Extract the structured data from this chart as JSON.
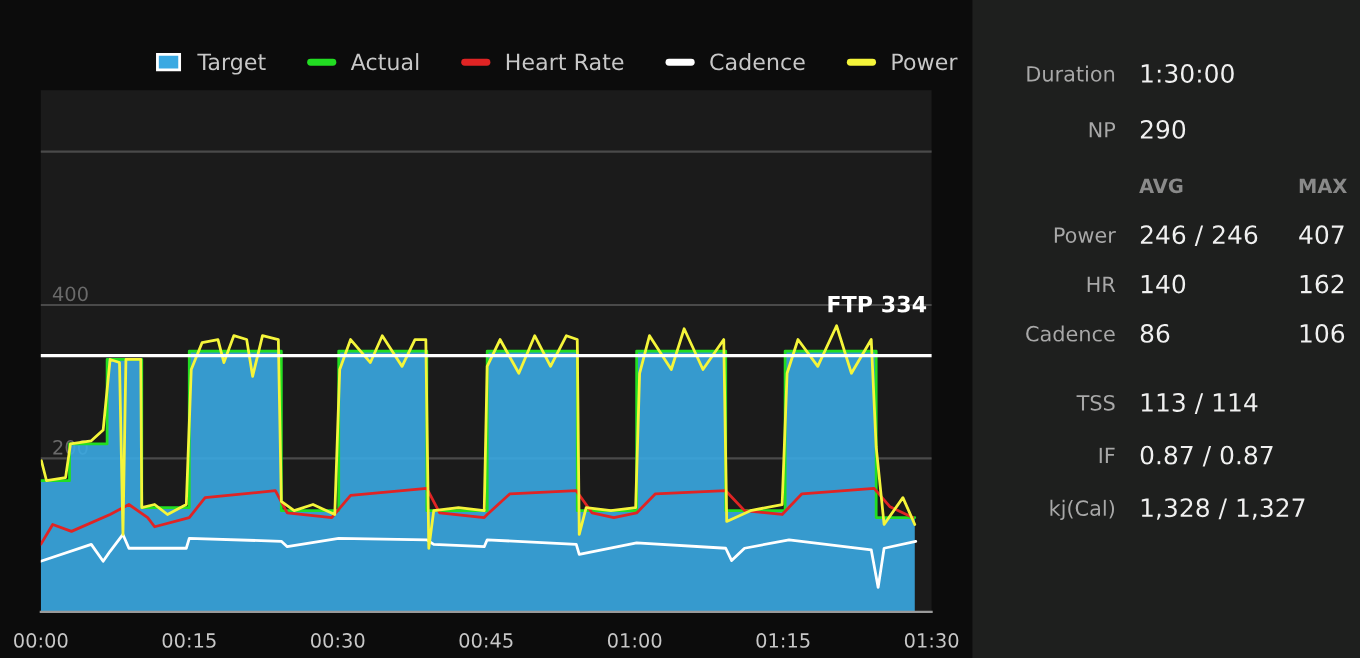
{
  "chart_data": [
    {
      "type": "line",
      "xlim": [
        0,
        90
      ],
      "xticks": [
        {
          "value": 0,
          "label": "00:00"
        },
        {
          "value": 15,
          "label": "00:15"
        },
        {
          "value": 30,
          "label": "00:30"
        },
        {
          "value": 45,
          "label": "00:45"
        },
        {
          "value": 60,
          "label": "01:00"
        },
        {
          "value": 75,
          "label": "01:15"
        },
        {
          "value": 90,
          "label": "01:30"
        }
      ],
      "ylim": [
        0,
        680
      ],
      "yticks": [
        200,
        400,
        {
          "value": 600,
          "label": null
        }
      ],
      "grid": "y",
      "legend": "top",
      "series": [
        {
          "name": "Target",
          "type": "area",
          "color": "#3aa9e2",
          "x": [
            0,
            2.9,
            2.9,
            6.7,
            6.7,
            10.2,
            10.2,
            15,
            15,
            24.3,
            24.3,
            30.1,
            30.1,
            39,
            39,
            45.1,
            45.1,
            54.2,
            54.2,
            60.2,
            60.2,
            69.2,
            69.2,
            75.2,
            75.2,
            84.4,
            84.4,
            88.3
          ],
          "values": [
            171,
            171,
            219,
            219,
            329,
            329,
            136,
            136,
            340,
            340,
            132,
            132,
            340,
            340,
            132,
            132,
            340,
            340,
            132,
            132,
            340,
            340,
            132,
            132,
            340,
            340,
            123,
            123
          ]
        },
        {
          "name": "Actual",
          "color": "#22dd22",
          "x": [
            0,
            2.9,
            2.9,
            6.7,
            6.7,
            10.2,
            10.2,
            15,
            15,
            24.3,
            24.3,
            30.1,
            30.1,
            39,
            39,
            45.1,
            45.1,
            54.2,
            54.2,
            60.2,
            60.2,
            69.2,
            69.2,
            75.2,
            75.2,
            84.4,
            84.4,
            88.3
          ],
          "values": [
            171,
            171,
            219,
            219,
            329,
            329,
            136,
            136,
            340,
            340,
            132,
            132,
            340,
            340,
            132,
            132,
            340,
            340,
            132,
            132,
            340,
            340,
            132,
            132,
            340,
            340,
            123,
            123
          ]
        },
        {
          "name": "Heart Rate",
          "color": "#e02424",
          "x": [
            0,
            1.2,
            3.1,
            7.0,
            8.9,
            10.8,
            11.5,
            15.0,
            16.6,
            23.7,
            24.9,
            29.4,
            31.3,
            39.0,
            40.3,
            44.8,
            45.1,
            47.4,
            54.1,
            55.7,
            57.9,
            60.2,
            62.1,
            69.2,
            71.1,
            74.9,
            76.9,
            84.2,
            85.8,
            88.1
          ],
          "values": [
            88,
            114,
            105,
            127,
            140,
            123,
            111,
            123,
            149,
            158,
            129,
            123,
            152,
            161,
            129,
            123,
            127,
            154,
            158,
            129,
            123,
            129,
            154,
            158,
            132,
            127,
            154,
            161,
            137,
            123
          ]
        },
        {
          "name": "Cadence",
          "color": "#ffffff",
          "x": [
            0,
            5.1,
            6.3,
            7.0,
            8.3,
            8.9,
            14.7,
            15.0,
            24.3,
            24.9,
            30.1,
            39.0,
            39.7,
            44.8,
            45.1,
            54.1,
            54.4,
            60.2,
            69.2,
            69.8,
            71.1,
            75.6,
            83.9,
            84.6,
            85.2,
            88.4
          ],
          "values": [
            66,
            88,
            66,
            79,
            101,
            83,
            83,
            96,
            92,
            85,
            96,
            94,
            88,
            85,
            94,
            88,
            75,
            90,
            83,
            67,
            83,
            94,
            81,
            32,
            83,
            92
          ]
        },
        {
          "name": "Power",
          "color": "#f5f53a",
          "x": [
            0.06,
            0.58,
            2.5,
            3.0,
            5.1,
            6.3,
            7.0,
            7.95,
            8.3,
            8.6,
            10.1,
            10.2,
            11.5,
            12.8,
            14.7,
            15.2,
            16.3,
            17.9,
            18.5,
            19.5,
            20.8,
            21.4,
            22.4,
            24.0,
            24.3,
            25.6,
            27.5,
            29.7,
            30.2,
            31.3,
            33.3,
            34.5,
            36.5,
            37.8,
            38.9,
            39.2,
            39.7,
            42.2,
            44.8,
            45.1,
            46.4,
            48.3,
            49.9,
            51.5,
            53.1,
            54.2,
            54.4,
            55.1,
            57.6,
            60.1,
            60.5,
            61.5,
            63.7,
            65.0,
            66.9,
            69.0,
            69.3,
            71.7,
            74.9,
            75.4,
            76.5,
            78.5,
            80.4,
            81.9,
            83.9,
            84.4,
            85.2,
            87.1,
            88.3
          ],
          "values": [
            197,
            171,
            175,
            219,
            223,
            237,
            329,
            325,
            101,
            329,
            329,
            136,
            140,
            127,
            140,
            316,
            351,
            355,
            325,
            360,
            355,
            307,
            360,
            355,
            144,
            132,
            140,
            127,
            316,
            355,
            325,
            360,
            320,
            355,
            355,
            83,
            132,
            136,
            132,
            320,
            355,
            311,
            360,
            320,
            360,
            355,
            101,
            136,
            132,
            136,
            311,
            360,
            316,
            369,
            316,
            355,
            118,
            132,
            140,
            311,
            355,
            320,
            373,
            311,
            355,
            215,
            114,
            149,
            114
          ]
        }
      ],
      "ref_lines": [
        {
          "axis": "y",
          "value": 334,
          "label": "FTP 334",
          "color": "#ffffff"
        }
      ]
    },
    {
      "type": "other",
      "annotations": [
        "Duration",
        "1:30:00",
        "NP",
        "290",
        "AVG",
        "MAX",
        "Power",
        "246 / 246",
        "407",
        "HR",
        "140",
        "162",
        "Cadence",
        "86",
        "106",
        "TSS",
        "113 / 114",
        "IF",
        "0.87 / 0.87",
        "kj(Cal)",
        "1,328 / 1,327"
      ]
    }
  ]
}
